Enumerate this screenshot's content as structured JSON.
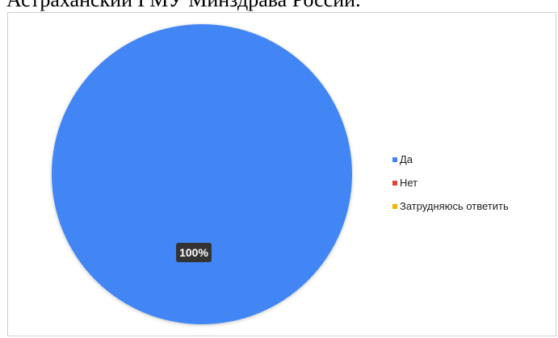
{
  "page": {
    "heading": "Астраханский ГМУ Минздрава России."
  },
  "chart_data": {
    "type": "pie",
    "title": "",
    "categories": [
      "Да",
      "Нет",
      "Затрудняюсь ответить"
    ],
    "values": [
      100,
      0,
      0
    ],
    "colors": [
      "#4285f4",
      "#db4437",
      "#f4b400"
    ],
    "data_labels": [
      "100%"
    ],
    "legend_position": "right"
  }
}
